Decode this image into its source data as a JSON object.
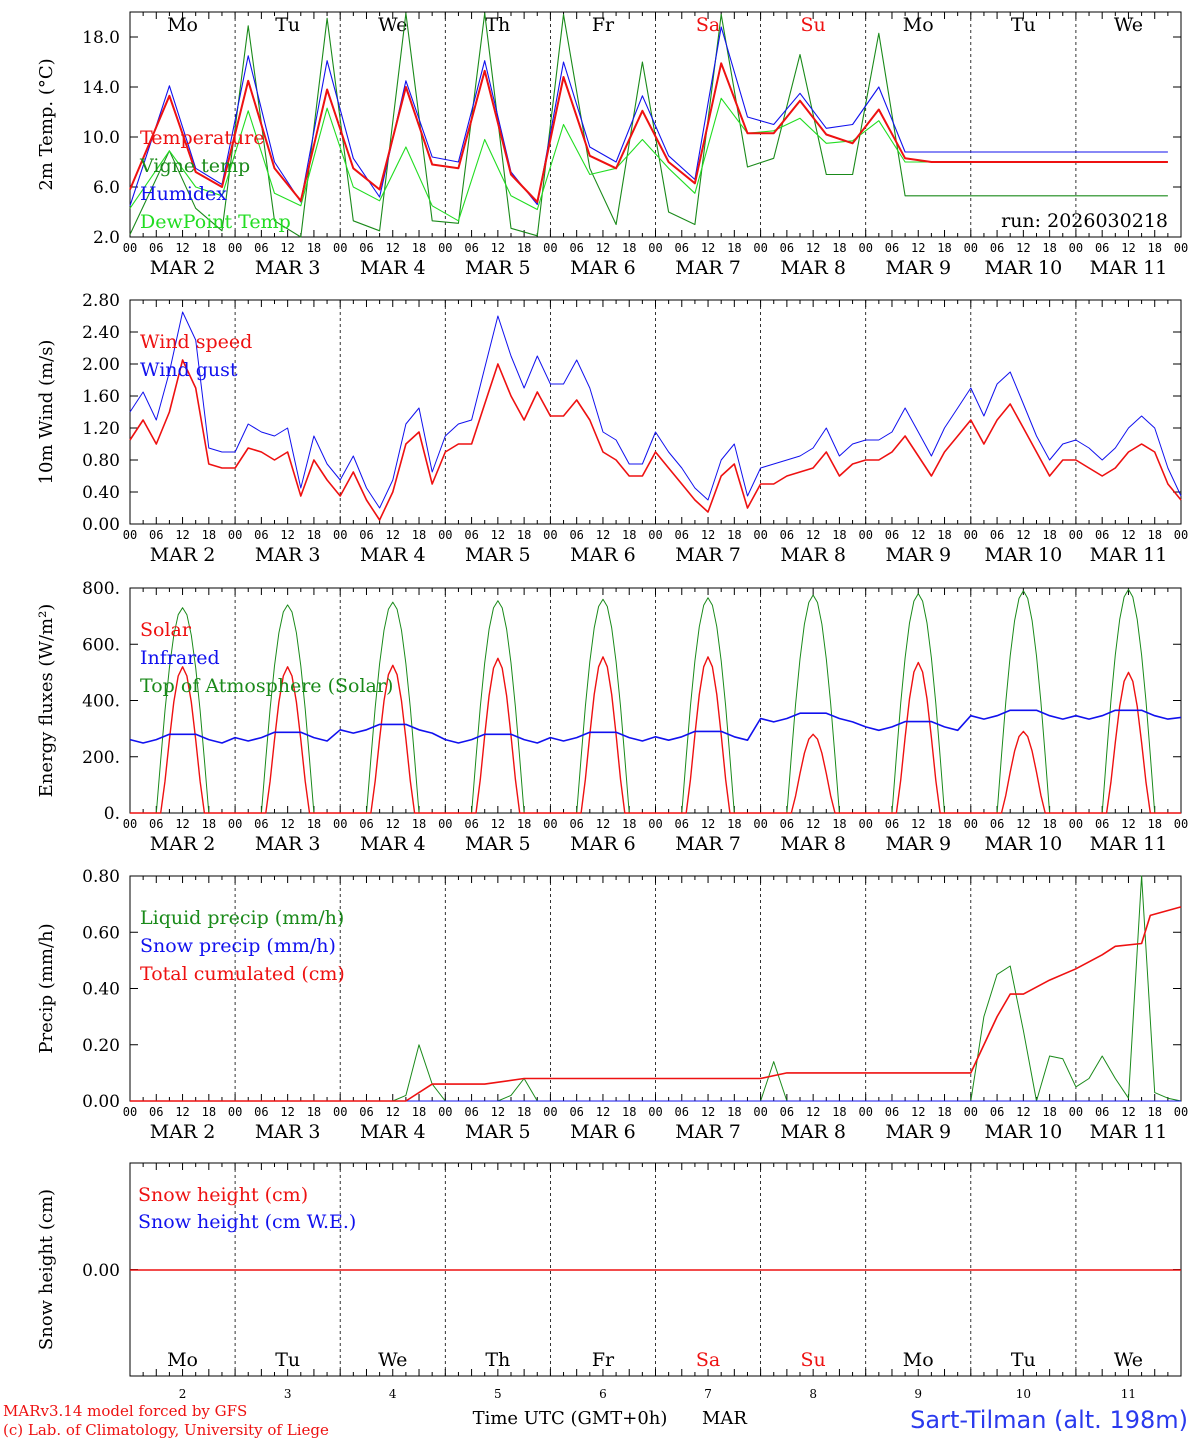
{
  "colors": {
    "red": "#ee1111",
    "green": "#1a8a1a",
    "blue": "#1111ee",
    "lightgreen": "#22dd22",
    "weekend": "#ee1111",
    "axis": "#000000"
  },
  "day_labels": [
    "Mo",
    "Tu",
    "We",
    "Th",
    "Fr",
    "Sa",
    "Su",
    "Mo",
    "Tu",
    "We"
  ],
  "weekend_days": [
    5,
    6
  ],
  "hour_ticks": [
    "00",
    "06",
    "12",
    "18"
  ],
  "date_labels": [
    "MAR 2",
    "MAR 3",
    "MAR 4",
    "MAR 5",
    "MAR 6",
    "MAR 7",
    "MAR 8",
    "MAR 9",
    "MAR 10",
    "MAR 11"
  ],
  "bottom_day_numbers": [
    "2",
    "3",
    "4",
    "5",
    "6",
    "7",
    "8",
    "9",
    "10",
    "11"
  ],
  "footer": {
    "model": "MARv3.14 model forced by GFS",
    "copyright": "(c) Lab. of Climatology, University of Liege",
    "xlabel": "Time UTC (GMT+0h)",
    "month": "MAR",
    "station": "Sart-Tilman (alt. 198m)"
  },
  "chart_data": [
    {
      "type": "line",
      "ylabel": "2m Temp. (°C)",
      "ylim": [
        2.0,
        20.0
      ],
      "yticks": [
        "2.0",
        "6.0",
        "10.0",
        "14.0",
        "18.0"
      ],
      "run_label": "run: 2026030218",
      "x_hours": [
        0,
        9,
        15,
        21,
        27,
        33,
        39,
        45,
        51,
        57,
        63,
        69,
        75,
        81,
        87,
        93,
        99,
        105,
        111,
        117,
        123,
        129,
        135,
        141,
        147,
        153,
        159,
        165,
        171,
        177,
        183,
        189,
        195,
        201,
        207,
        213,
        219,
        225,
        231,
        237
      ],
      "series": [
        {
          "name": "Temperature",
          "color": "red",
          "values": [
            5.8,
            13.3,
            7.2,
            6.0,
            14.5,
            7.5,
            4.9,
            13.8,
            7.5,
            5.8,
            14.0,
            7.8,
            7.5,
            15.3,
            7.0,
            4.8,
            14.8,
            8.5,
            7.5,
            12.1,
            8.0,
            6.3,
            15.9,
            10.3,
            10.3,
            12.9,
            10.2,
            9.5,
            12.2,
            8.3,
            8.0,
            8.0,
            8.0,
            8.0,
            8.0,
            8.0,
            8.0,
            8.0,
            8.0,
            8.0
          ]
        },
        {
          "name": "Vigne temp",
          "color": "green",
          "values": [
            2.2,
            8.9,
            4.3,
            2.5,
            18.9,
            3.3,
            2.0,
            19.5,
            3.3,
            2.5,
            19.9,
            3.3,
            3.1,
            19.9,
            2.7,
            2.1,
            19.8,
            7.5,
            3.0,
            16.0,
            4.0,
            3.0,
            19.8,
            7.6,
            8.3,
            16.6,
            7.0,
            7.0,
            18.3,
            5.3,
            5.3,
            5.3,
            5.3,
            5.3,
            5.3,
            5.3,
            5.3,
            5.3,
            5.3,
            5.3
          ]
        },
        {
          "name": "Humidex",
          "color": "blue",
          "values": [
            4.5,
            14.1,
            7.5,
            6.2,
            16.5,
            8.0,
            4.8,
            16.1,
            8.3,
            5.2,
            14.5,
            8.4,
            8.0,
            16.1,
            7.2,
            4.6,
            16.0,
            9.2,
            8.0,
            13.3,
            8.5,
            6.6,
            18.8,
            11.6,
            11.0,
            13.5,
            10.7,
            11.0,
            14.0,
            8.8,
            8.8,
            8.8,
            8.8,
            8.8,
            8.8,
            8.8,
            8.8,
            8.8,
            8.8,
            8.8
          ]
        },
        {
          "name": "DewPoint Temp",
          "color": "lightgreen",
          "values": [
            4.3,
            8.9,
            6.0,
            5.3,
            12.1,
            5.5,
            4.5,
            12.3,
            6.0,
            4.9,
            9.2,
            4.5,
            3.3,
            9.8,
            5.3,
            4.2,
            11.0,
            7.0,
            7.5,
            9.8,
            7.5,
            5.5,
            13.1,
            10.3,
            10.5,
            11.5,
            9.5,
            9.7,
            11.3,
            8.0,
            8.0,
            8.0,
            8.0,
            8.0,
            8.0,
            8.0,
            8.0,
            8.0,
            8.0,
            8.0
          ]
        }
      ]
    },
    {
      "type": "line",
      "ylabel": "10m Wind (m/s)",
      "ylim": [
        0.0,
        2.8
      ],
      "yticks": [
        "0.00",
        "0.40",
        "0.80",
        "1.20",
        "1.60",
        "2.00",
        "2.40",
        "2.80"
      ],
      "x_hours": [
        0,
        3,
        6,
        9,
        12,
        15,
        18,
        21,
        24,
        27,
        30,
        33,
        36,
        39,
        42,
        45,
        48,
        51,
        54,
        57,
        60,
        63,
        66,
        69,
        72,
        75,
        78,
        81,
        84,
        87,
        90,
        93,
        96,
        99,
        102,
        105,
        108,
        111,
        114,
        117,
        120,
        123,
        126,
        129,
        132,
        135,
        138,
        141,
        144,
        147,
        150,
        153,
        156,
        159,
        162,
        165,
        168,
        171,
        174,
        177,
        180,
        183,
        186,
        189,
        192,
        195,
        198,
        201,
        204,
        207,
        210,
        213,
        216,
        219,
        222,
        225,
        228,
        231,
        234,
        237,
        240
      ],
      "series": [
        {
          "name": "Wind speed",
          "color": "red",
          "values": [
            1.05,
            1.3,
            1.0,
            1.4,
            2.05,
            1.7,
            0.75,
            0.7,
            0.7,
            0.95,
            0.9,
            0.8,
            0.9,
            0.35,
            0.8,
            0.55,
            0.35,
            0.65,
            0.3,
            0.05,
            0.4,
            1.0,
            1.15,
            0.5,
            0.9,
            1.0,
            1.0,
            1.5,
            2.0,
            1.6,
            1.3,
            1.65,
            1.35,
            1.35,
            1.55,
            1.3,
            0.9,
            0.8,
            0.6,
            0.6,
            0.9,
            0.7,
            0.5,
            0.3,
            0.15,
            0.6,
            0.75,
            0.2,
            0.5,
            0.5,
            0.6,
            0.65,
            0.7,
            0.9,
            0.6,
            0.75,
            0.8,
            0.8,
            0.9,
            1.1,
            0.85,
            0.6,
            0.9,
            1.1,
            1.3,
            1.0,
            1.3,
            1.5,
            1.2,
            0.9,
            0.6,
            0.8,
            0.8,
            0.7,
            0.6,
            0.7,
            0.9,
            1.0,
            0.9,
            0.5,
            0.3
          ]
        },
        {
          "name": "Wind gust",
          "color": "blue",
          "values": [
            1.4,
            1.65,
            1.3,
            1.9,
            2.65,
            2.3,
            0.95,
            0.9,
            0.9,
            1.25,
            1.15,
            1.1,
            1.2,
            0.45,
            1.1,
            0.75,
            0.55,
            0.85,
            0.45,
            0.2,
            0.55,
            1.25,
            1.45,
            0.65,
            1.1,
            1.25,
            1.3,
            1.95,
            2.6,
            2.1,
            1.7,
            2.1,
            1.75,
            1.75,
            2.05,
            1.7,
            1.15,
            1.05,
            0.75,
            0.75,
            1.15,
            0.9,
            0.7,
            0.45,
            0.3,
            0.8,
            1.0,
            0.35,
            0.7,
            0.75,
            0.8,
            0.85,
            0.95,
            1.2,
            0.85,
            1.0,
            1.05,
            1.05,
            1.15,
            1.45,
            1.15,
            0.85,
            1.2,
            1.45,
            1.7,
            1.35,
            1.75,
            1.9,
            1.5,
            1.1,
            0.8,
            1.0,
            1.05,
            0.95,
            0.8,
            0.95,
            1.2,
            1.35,
            1.2,
            0.7,
            0.35
          ]
        }
      ]
    },
    {
      "type": "line",
      "ylabel": "Energy fluxes (W/m²)",
      "ylim": [
        0,
        800
      ],
      "yticks": [
        "0.",
        "200.",
        "400.",
        "600.",
        "800."
      ],
      "series": [
        {
          "name": "Solar",
          "color": "red",
          "day_peaks": [
            520,
            520,
            525,
            550,
            555,
            555,
            280,
            535,
            290,
            500
          ]
        },
        {
          "name": "Infrared",
          "color": "blue",
          "day_levels": [
            255,
            262,
            290,
            255,
            262,
            265,
            330,
            300,
            340,
            340
          ]
        },
        {
          "name": "Top of Atmosphere (Solar)",
          "color": "green",
          "day_peaks": [
            730,
            740,
            750,
            755,
            760,
            765,
            775,
            780,
            790,
            795
          ]
        }
      ]
    },
    {
      "type": "line",
      "ylabel": "Precip (mm/h)",
      "ylim": [
        0.0,
        0.8
      ],
      "yticks": [
        "0.00",
        "0.20",
        "0.40",
        "0.60",
        "0.80"
      ],
      "series": [
        {
          "name": "Liquid precip (mm/h)",
          "color": "green",
          "points": [
            [
              0,
              0
            ],
            [
              60,
              0
            ],
            [
              63,
              0.02
            ],
            [
              66,
              0.2
            ],
            [
              69,
              0.06
            ],
            [
              72,
              0
            ],
            [
              84,
              0
            ],
            [
              87,
              0.02
            ],
            [
              90,
              0.08
            ],
            [
              93,
              0
            ],
            [
              144,
              0
            ],
            [
              147,
              0.14
            ],
            [
              150,
              0
            ],
            [
              192,
              0
            ],
            [
              195,
              0.3
            ],
            [
              198,
              0.45
            ],
            [
              201,
              0.48
            ],
            [
              204,
              0.25
            ],
            [
              207,
              0
            ],
            [
              210,
              0.16
            ],
            [
              213,
              0.15
            ],
            [
              216,
              0.05
            ],
            [
              219,
              0.08
            ],
            [
              222,
              0.16
            ],
            [
              225,
              0.08
            ],
            [
              228,
              0.01
            ],
            [
              231,
              0.8
            ],
            [
              234,
              0.03
            ],
            [
              237,
              0.01
            ],
            [
              240,
              0
            ]
          ]
        },
        {
          "name": "Snow precip (mm/h)",
          "color": "blue",
          "points": [
            [
              0,
              0
            ],
            [
              240,
              0
            ]
          ]
        },
        {
          "name": "Total cumulated (cm)",
          "color": "red",
          "points": [
            [
              0,
              0
            ],
            [
              63,
              0
            ],
            [
              69,
              0.06
            ],
            [
              81,
              0.06
            ],
            [
              90,
              0.08
            ],
            [
              144,
              0.08
            ],
            [
              150,
              0.1
            ],
            [
              192,
              0.1
            ],
            [
              198,
              0.3
            ],
            [
              201,
              0.38
            ],
            [
              204,
              0.38
            ],
            [
              210,
              0.43
            ],
            [
              216,
              0.47
            ],
            [
              222,
              0.52
            ],
            [
              225,
              0.55
            ],
            [
              231,
              0.56
            ],
            [
              233,
              0.66
            ],
            [
              240,
              0.69
            ]
          ]
        }
      ]
    },
    {
      "type": "line",
      "ylabel": "Snow height (cm)",
      "yticks": [
        "0.00"
      ],
      "series": [
        {
          "name": "Snow height (cm)",
          "color": "red",
          "values": [
            0,
            0
          ]
        },
        {
          "name": "Snow height (cm W.E.)",
          "color": "blue",
          "values": [
            0,
            0
          ]
        }
      ]
    }
  ]
}
